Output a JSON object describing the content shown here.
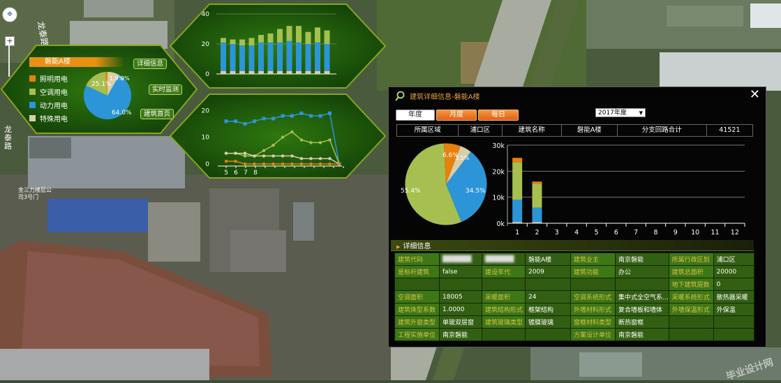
{
  "map": {
    "road_top": "龙泰路",
    "road_left": "龙泰路",
    "company_label": "金三力楼层公司3号门"
  },
  "left_panel": {
    "building_title": "磐能A楼",
    "legend": [
      {
        "label": "照明用电",
        "color": "#e8800c"
      },
      {
        "label": "空调用电",
        "color": "#a6bf50"
      },
      {
        "label": "动力用电",
        "color": "#2c95d8"
      },
      {
        "label": "特殊用电",
        "color": "#d8cfa8"
      }
    ],
    "pie_labels": {
      "a": "25.1%",
      "b": "1.9%",
      "c": "9%",
      "d": "64.0%"
    },
    "buttons": {
      "detail": "详细信息",
      "monitor": "实时监测",
      "home": "建筑首页"
    }
  },
  "bar_mini": {
    "y_ticks": [
      "40",
      "20",
      "0"
    ],
    "bars": [
      {
        "blue": 19,
        "green": 3,
        "cream": 2
      },
      {
        "blue": 18,
        "green": 3,
        "cream": 2
      },
      {
        "blue": 17,
        "green": 4,
        "cream": 2
      },
      {
        "blue": 17,
        "green": 5,
        "cream": 2
      },
      {
        "blue": 19,
        "green": 5,
        "cream": 2
      },
      {
        "blue": 19,
        "green": 6,
        "cream": 2
      },
      {
        "blue": 19,
        "green": 9,
        "cream": 2
      },
      {
        "blue": 20,
        "green": 10,
        "cream": 2
      },
      {
        "blue": 19,
        "green": 11,
        "cream": 2
      },
      {
        "blue": 18,
        "green": 8,
        "cream": 2
      },
      {
        "blue": 19,
        "green": 10,
        "cream": 2
      },
      {
        "blue": 18,
        "green": 9,
        "cream": 2
      }
    ]
  },
  "line_mini": {
    "y_ticks": [
      "20",
      "10",
      "0"
    ],
    "x_ticks": [
      "5",
      "6",
      "7",
      "8"
    ],
    "series": [
      {
        "color": "#2c95d8",
        "values": [
          16,
          16,
          15,
          16,
          17,
          17,
          18,
          18,
          19,
          18,
          18,
          19,
          0
        ]
      },
      {
        "color": "#a6bf50",
        "values": [
          4,
          4,
          3,
          3,
          5,
          7,
          10,
          12,
          9,
          8,
          8,
          9,
          0
        ]
      },
      {
        "color": "#d8cfa8",
        "values": [
          4,
          4,
          4,
          3,
          3,
          3,
          3,
          3,
          2,
          2,
          2,
          2,
          0
        ]
      },
      {
        "color": "#e8800c",
        "values": [
          1,
          1,
          0,
          0,
          0,
          0,
          0,
          0,
          0,
          0,
          0,
          0,
          0
        ]
      }
    ]
  },
  "panel": {
    "title": "建筑详细信息-磐能A楼",
    "tabs": [
      {
        "label": "年度"
      },
      {
        "label": "月度"
      },
      {
        "label": "每日"
      }
    ],
    "year": "2017年度",
    "info": [
      "所属区域",
      "浦口区",
      "建筑名称",
      "磐能A楼",
      "分支回路合计",
      "41521"
    ],
    "detail_header": "详细信息",
    "pie_labels": {
      "orange": "6.6%",
      "cream": "3.5%",
      "blue": "34.5%",
      "green": "55.4%"
    },
    "rows": [
      [
        "建筑代码",
        "",
        "",
        "磐能A楼",
        "建筑业主",
        "南京磐能",
        "所属行政区划",
        "浦口区"
      ],
      [
        "是标杆建筑",
        "false",
        "建设年代",
        "2009",
        "建筑功能",
        "办公",
        "建筑总面积",
        "20000"
      ],
      [
        "",
        "",
        "",
        "",
        "",
        "",
        "地下建筑层数",
        "0"
      ],
      [
        "空调面积",
        "18005",
        "采暖面积",
        "24",
        "空调系统形式",
        "集中式全空气系...",
        "采暖系统形式",
        "散热器采暖"
      ],
      [
        "建筑体型系数",
        "1.0000",
        "建筑结构形式",
        "框架结构",
        "外墙材料形式",
        "复合墙板和墙体",
        "外墙保温形式",
        "外保温"
      ],
      [
        "建筑外窗类型",
        "单玻双层窗",
        "建筑玻璃类型",
        "镀膜玻璃",
        "窗框材料类型",
        "断热窗框",
        "",
        ""
      ],
      [
        "工程实施单位",
        "南京磐能",
        "",
        "",
        "方案设计单位",
        "南京磐能",
        "",
        ""
      ]
    ]
  },
  "year_chart": {
    "y_ticks": [
      "30k",
      "20k",
      "10k",
      "0k"
    ],
    "x_ticks": [
      "1",
      "2",
      "3",
      "4",
      "5",
      "6",
      "7",
      "8",
      "9",
      "10",
      "11",
      "12"
    ],
    "bars": [
      {
        "cream": 500,
        "blue": 8500,
        "green": 14500,
        "orange": 1600
      },
      {
        "cream": 500,
        "blue": 5500,
        "green": 9000,
        "orange": 1000
      },
      null,
      null,
      null,
      null,
      null,
      null,
      null,
      null,
      null,
      null
    ]
  },
  "watermark": "毕业设计网"
}
